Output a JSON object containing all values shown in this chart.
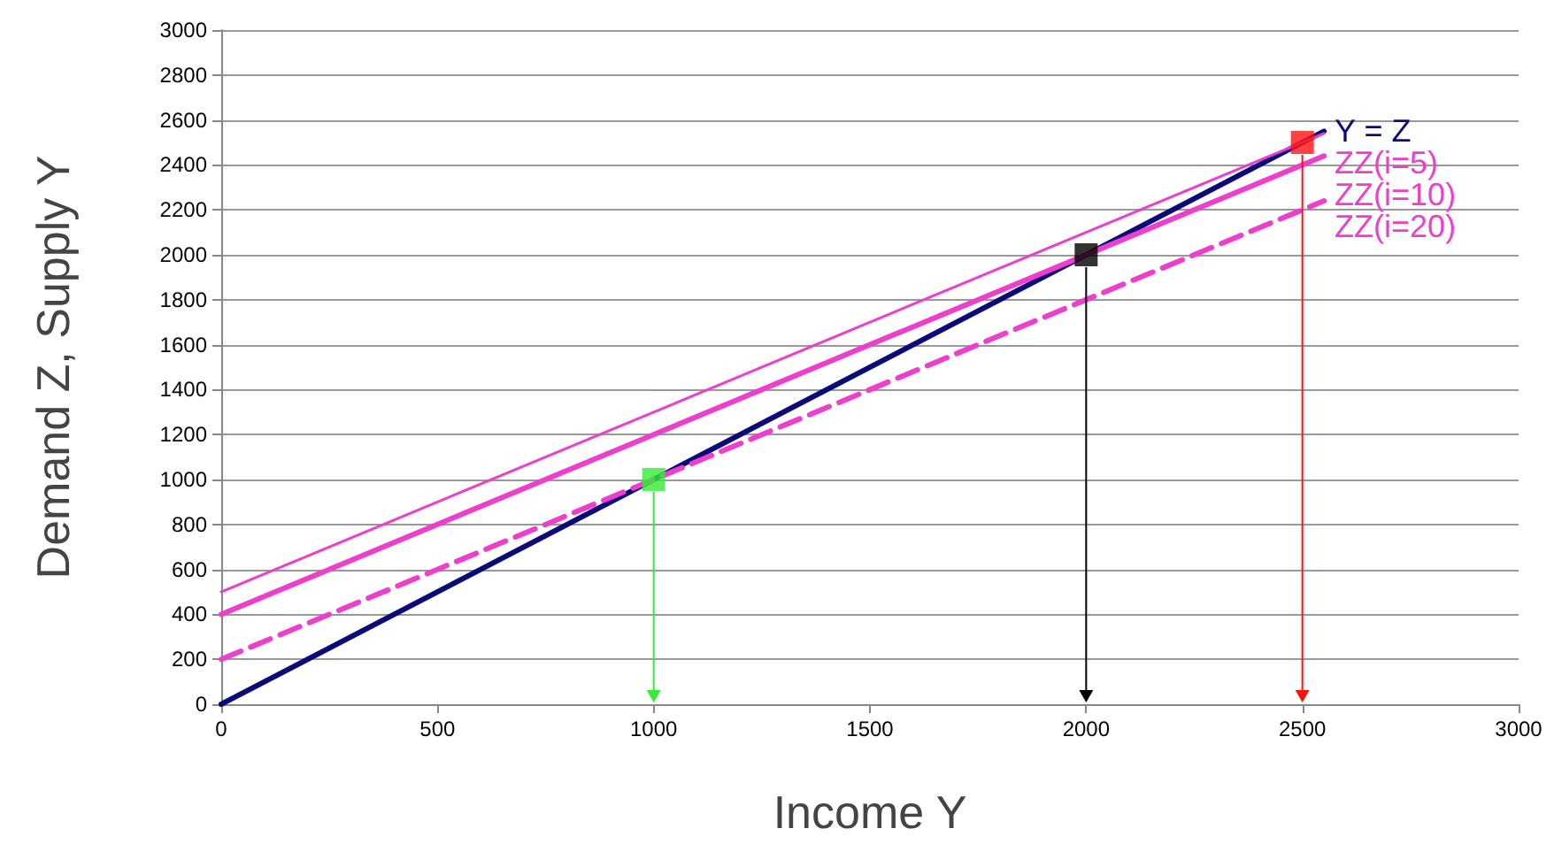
{
  "chart_data": {
    "type": "line",
    "xlabel": "Income Y",
    "ylabel": "Demand Z, Supply Y",
    "xlim": [
      0,
      3000
    ],
    "xticks": [
      0,
      500,
      1000,
      1500,
      2000,
      2500,
      3000
    ],
    "ylim": [
      0,
      3000
    ],
    "yticks": [
      0,
      200,
      400,
      600,
      800,
      1000,
      1200,
      1400,
      1600,
      1800,
      2000,
      2200,
      2400,
      2600,
      2800,
      3000
    ],
    "grid": "y",
    "legend": false,
    "marker": "none",
    "line_style": "solid",
    "series": [
      {
        "name": "Y = Z",
        "color": "#0a0a78",
        "x": [
          0,
          2550
        ],
        "values": [
          0,
          2550
        ]
      },
      {
        "name": "ZZ(i=5)",
        "color": "#ee3fcc",
        "x": [
          0,
          2550
        ],
        "values": [
          500,
          2540
        ]
      },
      {
        "name": "ZZ(i=10)",
        "color": "#ee3fcc",
        "x": [
          0,
          2550
        ],
        "values": [
          400,
          2440
        ]
      },
      {
        "name": "ZZ(i=20)",
        "color": "#ee3fcc",
        "x": [
          0,
          2550
        ],
        "values": [
          200,
          2240
        ],
        "line_style": "dashed"
      },
      {
        "type": "scatter",
        "marker": "square",
        "x": [
          1000,
          2000,
          2500
        ],
        "values": [
          1000,
          2000,
          2500
        ],
        "colors": [
          "#33ee33",
          "#000000",
          "#ff1111"
        ]
      }
    ]
  }
}
